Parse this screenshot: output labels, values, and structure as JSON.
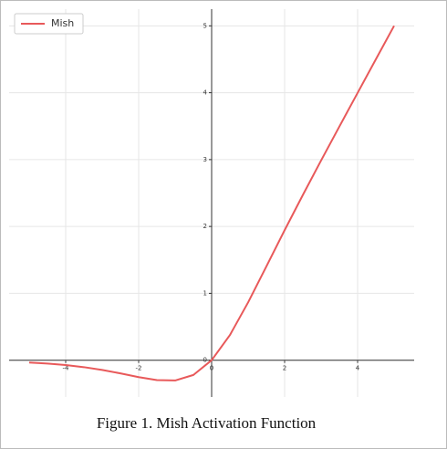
{
  "chart_data": {
    "type": "line",
    "caption": "Figure 1.  Mish Activation Function",
    "x": [
      -5,
      -4.5,
      -4,
      -3.5,
      -3,
      -2.5,
      -2,
      -1.5,
      -1,
      -0.5,
      0,
      0.5,
      1,
      1.5,
      2,
      2.5,
      3,
      3.5,
      4,
      4.5,
      5
    ],
    "series": [
      {
        "name": "Mish",
        "color": "#e8595a",
        "values": [
          -0.034,
          -0.05,
          -0.073,
          -0.104,
          -0.146,
          -0.197,
          -0.253,
          -0.298,
          -0.303,
          -0.221,
          0,
          0.375,
          0.865,
          1.403,
          1.944,
          2.471,
          2.987,
          3.494,
          3.997,
          4.499,
          5.0
        ]
      }
    ],
    "xlim": [
      -5.55,
      5.55
    ],
    "ylim": [
      -0.55,
      5.25
    ],
    "xticks": [
      -4,
      -2,
      0,
      2,
      4
    ],
    "yticks": [
      0,
      1,
      2,
      3,
      4,
      5
    ],
    "grid": true,
    "legend": "upper left"
  }
}
